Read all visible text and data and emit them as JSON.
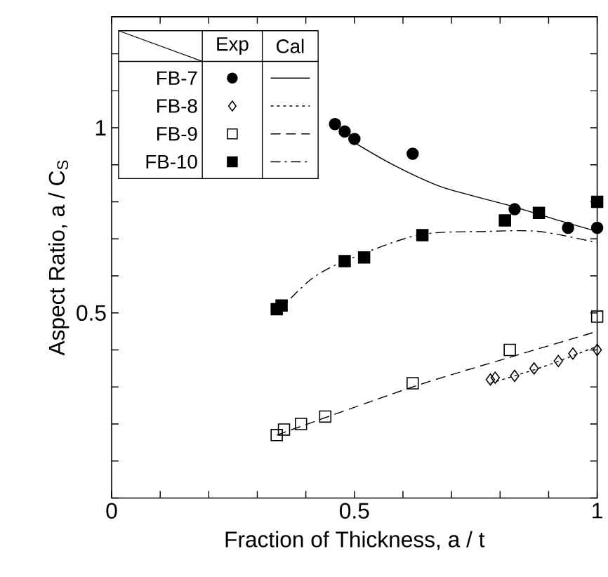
{
  "chart_data": {
    "type": "scatter",
    "xlabel": "Fraction of Thickness,  a / t",
    "ylabel": "Aspect Ratio, a / C$_{S}$",
    "xlim": [
      0,
      1
    ],
    "ylim": [
      0,
      1.3
    ],
    "xticks": [
      0,
      {
        "value": 0.1,
        "label": null
      },
      {
        "value": 0.2,
        "label": null
      },
      {
        "value": 0.3,
        "label": null
      },
      {
        "value": 0.4,
        "label": null
      },
      0.5,
      {
        "value": 0.6,
        "label": null
      },
      {
        "value": 0.7,
        "label": null
      },
      {
        "value": 0.8,
        "label": null
      },
      {
        "value": 0.9,
        "label": null
      },
      1
    ],
    "yticks": [
      {
        "value": 0,
        "label": null
      },
      {
        "value": 0.1,
        "label": null
      },
      {
        "value": 0.2,
        "label": null
      },
      {
        "value": 0.3,
        "label": null
      },
      {
        "value": 0.4,
        "label": null
      },
      0.5,
      {
        "value": 0.6,
        "label": null
      },
      {
        "value": 0.7,
        "label": null
      },
      {
        "value": 0.8,
        "label": null
      },
      {
        "value": 0.9,
        "label": null
      },
      1,
      {
        "value": 1.1,
        "label": null
      },
      {
        "value": 1.2,
        "label": null
      }
    ],
    "legend": "top left",
    "annotations": [
      "Exp",
      "Cal"
    ],
    "series": [
      {
        "name": "FB-7",
        "color": "#000000",
        "marker": "circle filled",
        "x": [
          0.46,
          0.48,
          0.5,
          0.62,
          0.83,
          0.94,
          1.0
        ],
        "values": [
          1.01,
          0.99,
          0.97,
          0.93,
          0.78,
          0.73,
          0.73
        ]
      },
      {
        "name": "FB-8",
        "color": "#000000",
        "marker": "diamond",
        "x": [
          0.78,
          0.79,
          0.83,
          0.87,
          0.92,
          0.95,
          1.0
        ],
        "values": [
          0.32,
          0.325,
          0.33,
          0.35,
          0.37,
          0.39,
          0.4
        ]
      },
      {
        "name": "FB-9",
        "color": "#000000",
        "marker": "square",
        "x": [
          0.34,
          0.355,
          0.39,
          0.44,
          0.62,
          0.82,
          1.0
        ],
        "values": [
          0.17,
          0.185,
          0.2,
          0.22,
          0.31,
          0.4,
          0.49
        ]
      },
      {
        "name": "FB-10",
        "color": "#000000",
        "marker": "square filled",
        "x": [
          0.34,
          0.35,
          0.48,
          0.52,
          0.64,
          0.81,
          0.88,
          1.0
        ],
        "values": [
          0.51,
          0.52,
          0.64,
          0.65,
          0.71,
          0.75,
          0.77,
          0.8
        ]
      },
      {
        "type": "line",
        "color": "#000000",
        "line_style": "solid",
        "x": [
          0.5,
          0.58,
          0.68,
          0.82,
          0.92,
          1.0
        ],
        "values": [
          0.96,
          0.9,
          0.84,
          0.79,
          0.75,
          0.72
        ]
      },
      {
        "type": "line",
        "color": "#000000",
        "line_style": "dotted",
        "x": [
          0.78,
          0.89,
          1.0
        ],
        "values": [
          0.31,
          0.355,
          0.41
        ]
      },
      {
        "type": "line",
        "color": "#000000",
        "line_style": "dashed",
        "x": [
          0.34,
          0.62,
          0.82,
          1.0
        ],
        "values": [
          0.17,
          0.3,
          0.38,
          0.45
        ]
      },
      {
        "type": "line",
        "color": "#000000",
        "line_style": "dashdot",
        "x": [
          0.34,
          0.41,
          0.48,
          0.63,
          0.77,
          0.88,
          1.0
        ],
        "values": [
          0.5,
          0.59,
          0.64,
          0.71,
          0.72,
          0.72,
          0.69
        ]
      }
    ]
  }
}
